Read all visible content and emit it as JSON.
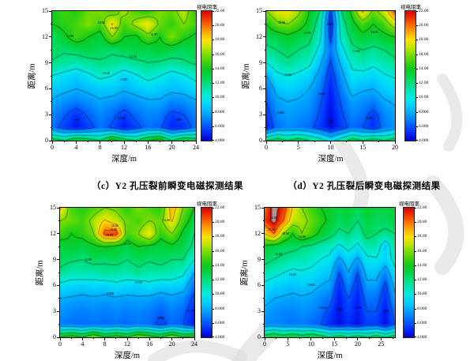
{
  "captions": {
    "c": "（c）Y2 孔压裂前瞬变电磁探测结果",
    "d": "（d）Y2 孔压裂后瞬变电磁探测结果"
  },
  "colorbar": {
    "title": "视电阻率",
    "tick_values": [
      22,
      20,
      18,
      16,
      14,
      12,
      10,
      8,
      6,
      4
    ],
    "tick_labels": [
      "22.00",
      "20.00",
      "18.00",
      "16.00",
      "14.00",
      "12.00",
      "10.00",
      "8.000",
      "6.000",
      "4.000"
    ],
    "min": 4,
    "max": 22
  },
  "contour_levels": [
    4,
    6,
    8,
    10,
    12,
    14,
    16,
    18,
    20,
    22
  ],
  "colormap": {
    "clip_color_above_max": "#9e9e9e",
    "stops": [
      [
        4,
        2,
        2,
        200
      ],
      [
        5,
        0,
        40,
        255
      ],
      [
        6,
        0,
        88,
        255
      ],
      [
        7,
        0,
        136,
        255
      ],
      [
        8,
        0,
        178,
        255
      ],
      [
        9,
        0,
        212,
        252
      ],
      [
        10,
        0,
        236,
        226
      ],
      [
        11,
        0,
        230,
        176
      ],
      [
        12,
        0,
        222,
        120
      ],
      [
        13,
        0,
        212,
        68
      ],
      [
        14,
        14,
        202,
        30
      ],
      [
        15,
        66,
        212,
        12
      ],
      [
        16,
        128,
        222,
        0
      ],
      [
        17,
        196,
        230,
        0
      ],
      [
        18,
        255,
        226,
        0
      ],
      [
        19,
        255,
        174,
        0
      ],
      [
        20,
        255,
        114,
        0
      ],
      [
        21,
        238,
        54,
        0
      ],
      [
        22,
        218,
        6,
        0
      ],
      [
        22.35,
        158,
        158,
        158
      ],
      [
        30,
        158,
        158,
        158
      ]
    ]
  },
  "watermark": {
    "color": "#d9d9d9"
  },
  "chart_data": [
    {
      "id": "c",
      "type": "heatmap",
      "caption": "（c）Y2 孔压裂前瞬变电磁探测结果",
      "xlabel": "深度/m",
      "ylabel": "距离/m",
      "xmin": 0,
      "xmax": 24,
      "ymin": 0,
      "ymax": 15,
      "x_ticks": [
        0,
        4,
        8,
        12,
        16,
        20,
        24
      ],
      "x_minor": 2,
      "y_ticks": [
        0,
        3,
        6,
        9,
        12,
        15
      ],
      "y_minor": 1.5,
      "grid_order": "rows bottom (y=0) to top (y=15)",
      "grid": [
        [
          13,
          12,
          14,
          13,
          12,
          15,
          13,
          12,
          14,
          15,
          12,
          14,
          13
        ],
        [
          6.5,
          5.5,
          4.5,
          5.5,
          6.5,
          5.8,
          4.6,
          5.6,
          6.5,
          6.2,
          4.8,
          5.2,
          6.5
        ],
        [
          7,
          6.2,
          5.2,
          6.2,
          7,
          6.4,
          5.4,
          6.4,
          7,
          6.8,
          5.6,
          6,
          7
        ],
        [
          7.8,
          7.2,
          6.8,
          7.2,
          7.8,
          7.4,
          7,
          7.4,
          7.8,
          7.8,
          7,
          7.2,
          7.8
        ],
        [
          8.8,
          8.4,
          8,
          8.4,
          8.8,
          8.8,
          8.2,
          8.6,
          9,
          8.8,
          8.4,
          8.6,
          9.2
        ],
        [
          10,
          9.4,
          8.8,
          9.6,
          10.4,
          10,
          9,
          9.8,
          10.6,
          10,
          9.2,
          9.8,
          10.6
        ],
        [
          11.8,
          11.4,
          11,
          11.4,
          11.8,
          11.6,
          11.2,
          11.6,
          12,
          11.8,
          11.4,
          11.8,
          12.2
        ],
        [
          12.6,
          12.2,
          12.6,
          13,
          12.6,
          12.2,
          12.8,
          13.2,
          12.8,
          13.4,
          13,
          12.6,
          13
        ],
        [
          12.2,
          13.6,
          15,
          14,
          13.2,
          16,
          14,
          13.6,
          15.4,
          14,
          16,
          14.4,
          13.6
        ],
        [
          14,
          14.6,
          15,
          16,
          15,
          18.2,
          15,
          16.6,
          18,
          15.6,
          14.6,
          16,
          15
        ],
        [
          14,
          15,
          14.4,
          15.6,
          16,
          15,
          16.6,
          15,
          14.4,
          16,
          15.4,
          17,
          14.4
        ]
      ],
      "contour_labels": [
        {
          "v": "6.000",
          "x": 4,
          "y": 2.4
        },
        {
          "v": "6.000",
          "x": 11.5,
          "y": 2.6
        },
        {
          "v": "6.000",
          "x": 21,
          "y": 2.4
        },
        {
          "v": "8.000",
          "x": 12,
          "y": 7.0
        },
        {
          "v": "10.00",
          "x": 9,
          "y": 7.8
        },
        {
          "v": "12.00",
          "x": 13.5,
          "y": 9.7
        },
        {
          "v": "14.00",
          "x": 3,
          "y": 12.1
        },
        {
          "v": "16.00",
          "x": 10.3,
          "y": 13.0
        },
        {
          "v": "18.00",
          "x": 8.2,
          "y": 13.6
        },
        {
          "v": "14.00",
          "x": 17,
          "y": 12.3
        }
      ]
    },
    {
      "id": "d",
      "type": "heatmap",
      "caption": "（d）Y2 孔压裂后瞬变电磁探测结果",
      "xlabel": "深度/m",
      "ylabel": "距离/m",
      "xmin": 0,
      "xmax": 20,
      "ymin": 0,
      "ymax": 15,
      "x_ticks": [
        0,
        5,
        10,
        15,
        20
      ],
      "x_minor": 2.5,
      "y_ticks": [
        0,
        3,
        6,
        9,
        12,
        15
      ],
      "y_minor": 1.5,
      "grid_order": "rows bottom (y=0) to top (y=15)",
      "grid": [
        [
          12,
          13,
          12,
          13,
          12,
          11,
          9.5,
          11,
          13,
          12,
          13,
          12,
          13
        ],
        [
          4.8,
          6.6,
          7,
          6.8,
          6.4,
          5.4,
          4.2,
          5.4,
          6.4,
          6,
          5,
          6.6,
          7.2
        ],
        [
          5.4,
          7,
          7.6,
          7.2,
          7,
          5.8,
          4.3,
          5.8,
          7,
          6.6,
          5.4,
          7,
          7.6
        ],
        [
          6,
          7.6,
          8,
          7.8,
          7.4,
          6.2,
          4.5,
          6.2,
          7.6,
          7.2,
          6.8,
          7.8,
          8.2
        ],
        [
          6.6,
          8.6,
          9,
          8.6,
          8,
          6.8,
          4.8,
          6.8,
          8.6,
          8.2,
          8,
          8.8,
          9.2
        ],
        [
          8,
          9.6,
          10,
          9.6,
          9,
          7.4,
          5.2,
          7.4,
          9.6,
          9.4,
          9,
          9.8,
          10.2
        ],
        [
          10,
          11,
          11.6,
          11,
          10.4,
          8.4,
          5.8,
          8.4,
          10.4,
          11,
          10.4,
          11,
          11.6
        ],
        [
          11.6,
          12,
          12.6,
          12,
          11.6,
          9.4,
          6.6,
          9.4,
          11.6,
          12,
          11.6,
          12,
          12.6
        ],
        [
          12.6,
          13,
          13.6,
          13,
          12.5,
          10.5,
          5.5,
          10.5,
          12.5,
          13.5,
          13,
          13.5,
          14
        ],
        [
          14,
          15.6,
          16,
          15,
          13.5,
          11,
          4.8,
          11,
          13.5,
          15,
          14,
          15,
          17
        ],
        [
          16,
          17.5,
          18,
          16.5,
          14,
          12,
          5.5,
          12,
          14.5,
          18.5,
          15.5,
          17,
          20.5
        ]
      ],
      "contour_labels": [
        {
          "v": "4.000",
          "x": 9.9,
          "y": 2.2
        },
        {
          "v": "6.000",
          "x": 2.3,
          "y": 3.2
        },
        {
          "v": "6.000",
          "x": 16,
          "y": 2.6
        },
        {
          "v": "8.000",
          "x": 8.6,
          "y": 5.4
        },
        {
          "v": "10.00",
          "x": 3.4,
          "y": 7.6
        },
        {
          "v": "12.00",
          "x": 14,
          "y": 10.3
        },
        {
          "v": "14.00",
          "x": 6.4,
          "y": 12.4
        },
        {
          "v": "16.00",
          "x": 2.4,
          "y": 13.6
        },
        {
          "v": "14.00",
          "x": 16.8,
          "y": 12.5
        },
        {
          "v": "4.000",
          "x": 9.9,
          "y": 13.4
        }
      ]
    },
    {
      "id": "c2",
      "type": "heatmap",
      "caption": "",
      "xlabel": "深度/m",
      "ylabel": "距离/m",
      "xmin": 0,
      "xmax": 24,
      "ymin": 0,
      "ymax": 15,
      "x_ticks": [
        0,
        4,
        8,
        12,
        16,
        20,
        24
      ],
      "x_minor": 2,
      "y_ticks": [
        0,
        3,
        6,
        9,
        12,
        15
      ],
      "y_minor": 1.5,
      "grid_order": "rows bottom (y=0) to top (y=15)",
      "grid": [
        [
          14,
          15,
          14,
          16,
          14,
          15,
          14,
          16,
          15,
          14,
          16,
          14,
          15
        ],
        [
          6.8,
          6.6,
          6.4,
          6.6,
          6.4,
          6.6,
          6.4,
          6.6,
          6.4,
          5.6,
          6.4,
          6,
          4.6
        ],
        [
          7.2,
          7,
          6.8,
          7,
          6.8,
          7,
          6.8,
          7,
          6.8,
          6.2,
          6.8,
          6.4,
          5
        ],
        [
          8,
          7.8,
          7.6,
          7.8,
          7.6,
          7.8,
          7.6,
          7.8,
          7.6,
          7.2,
          7.6,
          7.2,
          5.6
        ],
        [
          9.6,
          9.2,
          9,
          9.2,
          9,
          9.6,
          9.2,
          9,
          9.6,
          9,
          9.2,
          8.8,
          6.6
        ],
        [
          11.6,
          11,
          11.2,
          11,
          11.6,
          11.2,
          11,
          11.6,
          11,
          11.2,
          11,
          10.4,
          8
        ],
        [
          12.6,
          12.2,
          12,
          12.6,
          12.2,
          12.6,
          12,
          12.6,
          12.2,
          12.6,
          12,
          12,
          10
        ],
        [
          13,
          13.6,
          13,
          13.6,
          14,
          13.6,
          13,
          14,
          13.6,
          13,
          13.6,
          13,
          11.6
        ],
        [
          15,
          14,
          14.6,
          16,
          20.6,
          21,
          15,
          16,
          18,
          14.6,
          16,
          13.6,
          12
        ],
        [
          16,
          15.6,
          15,
          16.6,
          18.2,
          17,
          15.6,
          15,
          16,
          15.6,
          18.2,
          15,
          13
        ],
        [
          18.4,
          15,
          14.4,
          15,
          16,
          15.6,
          14.4,
          16,
          15,
          14.4,
          19,
          16,
          14
        ]
      ],
      "contour_labels": [
        {
          "v": "6.000",
          "x": 18,
          "y": 2.2
        },
        {
          "v": "6.000",
          "x": 23.5,
          "y": 3.0
        },
        {
          "v": "8.000",
          "x": 9,
          "y": 5.0
        },
        {
          "v": "10.00",
          "x": 14,
          "y": 6.3
        },
        {
          "v": "12.00",
          "x": 5,
          "y": 9.0
        },
        {
          "v": "14.00",
          "x": 12,
          "y": 10.8
        },
        {
          "v": "16.00",
          "x": 8.8,
          "y": 11.8
        },
        {
          "v": "18.00",
          "x": 9.5,
          "y": 12.4
        },
        {
          "v": "20.00",
          "x": 9.8,
          "y": 12.9
        },
        {
          "v": "14.00",
          "x": 19,
          "y": 13.5
        }
      ]
    },
    {
      "id": "d2",
      "type": "heatmap",
      "caption": "",
      "xlabel": "深度/m",
      "ylabel": "距离/m",
      "xmin": 0,
      "xmax": 28,
      "ymin": 0,
      "ymax": 15,
      "x_ticks": [
        0,
        5,
        10,
        15,
        20,
        25
      ],
      "x_minor": 2.5,
      "y_ticks": [
        0,
        3,
        6,
        9,
        12,
        15
      ],
      "y_minor": 1.5,
      "grid_order": "rows bottom (y=0) to top (y=15)",
      "grid": [
        [
          13,
          14,
          13,
          14,
          13,
          14,
          13,
          12,
          13,
          12,
          13,
          12,
          13,
          12,
          13
        ],
        [
          7,
          7,
          6.8,
          6.6,
          6.8,
          6.4,
          6,
          5,
          4.4,
          5,
          4.4,
          5.4,
          5.4,
          4.4,
          6
        ],
        [
          7.6,
          7.2,
          7,
          7,
          7.2,
          7,
          6.6,
          5.6,
          4.4,
          5.6,
          4.6,
          6,
          6,
          4.6,
          6.6
        ],
        [
          8.6,
          8,
          7.8,
          7.6,
          7.8,
          7.6,
          7,
          6.6,
          4.6,
          6,
          4.8,
          6.6,
          6.6,
          5,
          7.6
        ],
        [
          9.6,
          9,
          8.8,
          8.6,
          8.8,
          8.6,
          8,
          7.6,
          5,
          7,
          5.2,
          7.6,
          7.6,
          5.6,
          8.6
        ],
        [
          11,
          10.6,
          10,
          9.6,
          9.8,
          9.6,
          9,
          8.6,
          6,
          8,
          6,
          8.6,
          8.6,
          7,
          9.6
        ],
        [
          12.6,
          12,
          11.6,
          11,
          11,
          10.6,
          10,
          9.6,
          7.6,
          9,
          7.6,
          9.6,
          9.8,
          9,
          10.6
        ],
        [
          13.6,
          13,
          12.6,
          12.6,
          12,
          11.6,
          11,
          10.6,
          9.6,
          10.6,
          9.6,
          11,
          11,
          8.6,
          11.6
        ],
        [
          18,
          20,
          16,
          14,
          16,
          15,
          13.6,
          12.6,
          11.6,
          12,
          11,
          12.6,
          12,
          11.6,
          12
        ],
        [
          21,
          22.6,
          20,
          17,
          16.6,
          15.6,
          14.6,
          13.6,
          12.6,
          13,
          12,
          13,
          12.6,
          12.6,
          13
        ],
        [
          20,
          22.9,
          21,
          18,
          16,
          15,
          14,
          13.6,
          13,
          13.6,
          12.6,
          13.6,
          13,
          13,
          13.6
        ]
      ],
      "contour_labels": [
        {
          "v": "4.000",
          "x": 16,
          "y": 3.2
        },
        {
          "v": "4.000",
          "x": 20,
          "y": 3.4
        },
        {
          "v": "4.000",
          "x": 26,
          "y": 3.0
        },
        {
          "v": "6.000",
          "x": 12.5,
          "y": 3.4
        },
        {
          "v": "8.000",
          "x": 10,
          "y": 6.0
        },
        {
          "v": "10.00",
          "x": 6,
          "y": 7.2
        },
        {
          "v": "12.00",
          "x": 3,
          "y": 9.6
        },
        {
          "v": "14.00",
          "x": 8,
          "y": 11.6
        },
        {
          "v": "16.00",
          "x": 4.5,
          "y": 12.0
        },
        {
          "v": "20.00",
          "x": 1.5,
          "y": 12.4
        },
        {
          "v": "22.00",
          "x": 2,
          "y": 13.8
        }
      ]
    }
  ]
}
